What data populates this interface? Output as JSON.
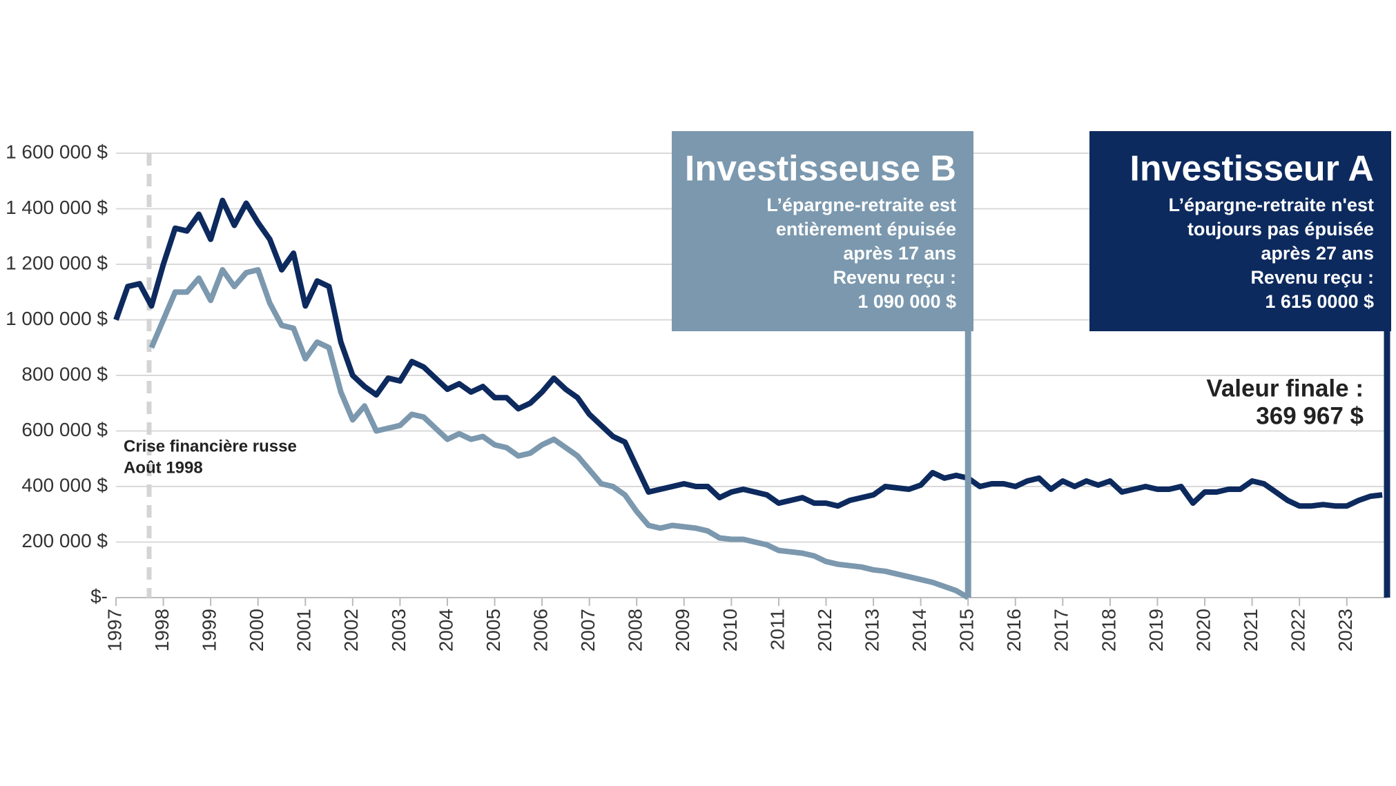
{
  "chart_data": {
    "type": "line",
    "xlim": [
      1997,
      2023.85
    ],
    "xticks": [
      1997,
      1998,
      1999,
      2000,
      2001,
      2002,
      2003,
      2004,
      2005,
      2006,
      2007,
      2008,
      2009,
      2010,
      2011,
      2012,
      2013,
      2014,
      2015,
      2016,
      2017,
      2018,
      2019,
      2020,
      2021,
      2022,
      2023
    ],
    "ylim": [
      0,
      1600000
    ],
    "yticks": [
      {
        "value": 0,
        "label": "$-"
      },
      {
        "value": 200000,
        "label": "200 000 $"
      },
      {
        "value": 400000,
        "label": "400 000 $"
      },
      {
        "value": 600000,
        "label": "600 000 $"
      },
      {
        "value": 800000,
        "label": "800 000 $"
      },
      {
        "value": 1000000,
        "label": "1 000 000 $"
      },
      {
        "value": 1200000,
        "label": "1 200 000 $"
      },
      {
        "value": 1400000,
        "label": "1 400 000 $"
      },
      {
        "value": 1600000,
        "label": "1 600 000 $"
      }
    ],
    "grid": true,
    "x": [
      1997,
      1997.25,
      1997.5,
      1997.75,
      1998,
      1998.25,
      1998.5,
      1998.75,
      1999,
      1999.25,
      1999.5,
      1999.75,
      2000,
      2000.25,
      2000.5,
      2000.75,
      2001,
      2001.25,
      2001.5,
      2001.75,
      2002,
      2002.25,
      2002.5,
      2002.75,
      2003,
      2003.25,
      2003.5,
      2003.75,
      2004,
      2004.25,
      2004.5,
      2004.75,
      2005,
      2005.25,
      2005.5,
      2005.75,
      2006,
      2006.25,
      2006.5,
      2006.75,
      2007,
      2007.25,
      2007.5,
      2007.75,
      2008,
      2008.25,
      2008.5,
      2008.75,
      2009,
      2009.25,
      2009.5,
      2009.75,
      2010,
      2010.25,
      2010.5,
      2010.75,
      2011,
      2011.25,
      2011.5,
      2011.75,
      2012,
      2012.25,
      2012.5,
      2012.75,
      2013,
      2013.25,
      2013.5,
      2013.75,
      2014,
      2014.25,
      2014.5,
      2014.75,
      2015,
      2015.25,
      2015.5,
      2015.75,
      2016,
      2016.25,
      2016.5,
      2016.75,
      2017,
      2017.25,
      2017.5,
      2017.75,
      2018,
      2018.25,
      2018.5,
      2018.75,
      2019,
      2019.25,
      2019.5,
      2019.75,
      2020,
      2020.25,
      2020.5,
      2020.75,
      2021,
      2021.25,
      2021.5,
      2021.75,
      2022,
      2022.25,
      2022.5,
      2022.75,
      2023,
      2023.25,
      2023.5,
      2023.75
    ],
    "series": [
      {
        "name": "Investisseur A",
        "color": "#0d2a5e",
        "values": [
          1000000,
          1120000,
          1130000,
          1050000,
          1200000,
          1330000,
          1320000,
          1380000,
          1290000,
          1430000,
          1340000,
          1420000,
          1350000,
          1290000,
          1180000,
          1240000,
          1050000,
          1140000,
          1120000,
          920000,
          800000,
          760000,
          730000,
          790000,
          780000,
          850000,
          830000,
          790000,
          750000,
          770000,
          740000,
          760000,
          720000,
          720000,
          680000,
          700000,
          740000,
          790000,
          750000,
          720000,
          660000,
          620000,
          580000,
          560000,
          470000,
          380000,
          390000,
          400000,
          410000,
          400000,
          400000,
          360000,
          380000,
          390000,
          380000,
          370000,
          340000,
          350000,
          360000,
          340000,
          340000,
          330000,
          350000,
          360000,
          370000,
          400000,
          395000,
          390000,
          405000,
          450000,
          430000,
          440000,
          430000,
          400000,
          410000,
          410000,
          400000,
          420000,
          430000,
          390000,
          420000,
          400000,
          420000,
          405000,
          420000,
          380000,
          390000,
          400000,
          390000,
          390000,
          400000,
          340000,
          380000,
          380000,
          390000,
          390000,
          420000,
          410000,
          380000,
          350000,
          330000,
          330000,
          335000,
          330000,
          330000,
          350000,
          365000,
          369967
        ]
      },
      {
        "name": "Investisseuse B",
        "color": "#7b98ae",
        "values": [
          null,
          null,
          null,
          900000,
          1000000,
          1100000,
          1100000,
          1150000,
          1070000,
          1180000,
          1120000,
          1170000,
          1180000,
          1060000,
          980000,
          970000,
          860000,
          920000,
          900000,
          740000,
          640000,
          690000,
          600000,
          610000,
          620000,
          660000,
          650000,
          610000,
          570000,
          590000,
          570000,
          580000,
          550000,
          540000,
          510000,
          520000,
          550000,
          570000,
          540000,
          510000,
          460000,
          410000,
          400000,
          370000,
          310000,
          260000,
          250000,
          260000,
          255000,
          250000,
          240000,
          215000,
          210000,
          210000,
          200000,
          190000,
          170000,
          165000,
          160000,
          150000,
          130000,
          120000,
          115000,
          110000,
          100000,
          95000,
          85000,
          75000,
          65000,
          55000,
          40000,
          25000,
          0,
          null,
          null,
          null,
          null,
          null,
          null,
          null,
          null,
          null,
          null,
          null,
          null,
          null,
          null,
          null,
          null,
          null,
          null,
          null,
          null,
          null,
          null,
          null,
          null,
          null,
          null,
          null,
          null,
          null,
          null,
          null,
          null,
          null,
          null,
          null
        ]
      }
    ],
    "annotations": [
      {
        "text": [
          "Crise financière russe",
          "Août 1998"
        ],
        "x": 1997.7
      }
    ],
    "callouts": [
      {
        "title": "Investisseuse B",
        "lines": [
          "L’épargne-retraite est",
          "entièrement épuisée",
          "après 17 ans",
          "Revenu reçu :",
          "1 090 000 $"
        ],
        "color": "#7b98ae",
        "x": 2015
      },
      {
        "title": "Investisseur A",
        "lines": [
          "L’épargne-retraite n'est",
          "toujours pas épuisée",
          "après 27 ans",
          "Revenu reçu :",
          "1 615 0000 $"
        ],
        "color": "#0d2a5e",
        "x": 2023.85
      }
    ],
    "final_value": [
      "Valeur finale :",
      "369 967 $"
    ]
  }
}
